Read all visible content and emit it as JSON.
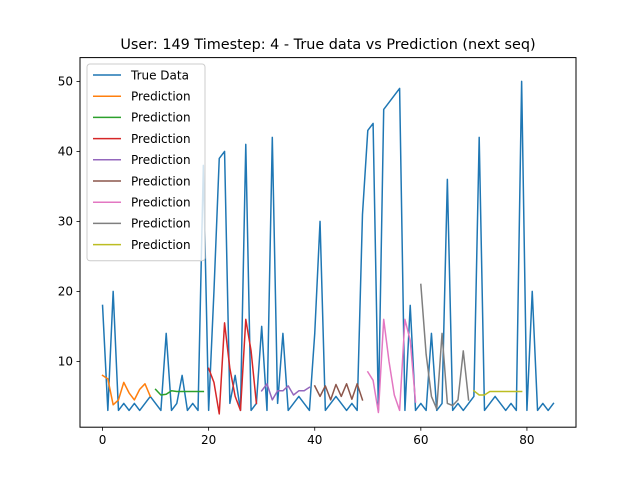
{
  "chart_data": {
    "type": "line",
    "title": "User: 149 Timestep: 4 - True data vs Prediction (next seq)",
    "xlabel": "",
    "ylabel": "",
    "xlim": [
      -4.25,
      89.25
    ],
    "ylim": [
      0.6,
      53.4
    ],
    "xticks": [
      0,
      20,
      40,
      60,
      80
    ],
    "yticks": [
      10,
      20,
      30,
      40,
      50
    ],
    "grid": false,
    "legend_position": "top-left",
    "colors": {
      "true_data": "#1f77b4",
      "prediction_1": "#ff7f0e",
      "prediction_2": "#2ca02c",
      "prediction_3": "#d62728",
      "prediction_4": "#9467bd",
      "prediction_5": "#8c564b",
      "prediction_6": "#e377c2",
      "prediction_7": "#7f7f7f",
      "prediction_8": "#bcbd22"
    },
    "series": [
      {
        "name": "True Data",
        "color": "#1f77b4",
        "x_start": 0,
        "values": [
          18,
          3,
          20,
          3,
          4,
          3,
          4,
          3,
          4,
          5,
          4,
          3,
          14,
          3,
          4,
          8,
          3,
          4,
          3,
          38,
          3,
          20,
          39,
          40,
          4,
          8,
          3,
          41,
          3,
          4,
          15,
          3,
          42,
          4,
          14,
          3,
          4,
          5,
          4,
          3,
          14,
          30,
          3,
          4,
          5,
          4,
          3,
          4,
          3,
          31,
          43,
          44,
          3,
          46,
          47,
          48,
          49,
          3,
          18,
          3,
          4,
          3,
          14,
          3,
          4,
          36,
          3,
          4,
          3,
          4,
          5,
          42,
          3,
          4,
          5,
          4,
          3,
          4,
          3,
          50,
          3,
          20,
          3,
          4,
          3,
          4
        ]
      },
      {
        "name": "Prediction",
        "color": "#ff7f0e",
        "x_start": 0,
        "values": [
          8,
          7.5,
          3.8,
          4.5,
          7,
          5.5,
          4.5,
          6,
          6.8,
          5
        ]
      },
      {
        "name": "Prediction",
        "color": "#2ca02c",
        "x_start": 10,
        "values": [
          6,
          5.2,
          5.3,
          5.8,
          5.7,
          5.7,
          5.7,
          5.7,
          5.7,
          5.7
        ]
      },
      {
        "name": "Prediction",
        "color": "#d62728",
        "x_start": 20,
        "values": [
          9,
          7,
          2.5,
          15.5,
          9,
          5,
          3,
          16,
          11.5,
          4
        ]
      },
      {
        "name": "Prediction",
        "color": "#9467bd",
        "x_start": 30,
        "values": [
          5.8,
          6.8,
          4.5,
          5.8,
          5.8,
          6.5,
          5.2,
          5.8,
          5.8,
          6.3
        ]
      },
      {
        "name": "Prediction",
        "color": "#8c564b",
        "x_start": 40,
        "values": [
          6.5,
          5,
          6.5,
          4.5,
          6.7,
          5,
          6.8,
          4.6,
          6.8,
          4.5
        ]
      },
      {
        "name": "Prediction",
        "color": "#e377c2",
        "x_start": 50,
        "values": [
          8.5,
          7.3,
          2.7,
          16,
          10,
          5.2,
          3,
          16,
          13,
          4.2
        ]
      },
      {
        "name": "Prediction",
        "color": "#7f7f7f",
        "x_start": 60,
        "values": [
          21,
          11,
          5,
          3.2,
          14,
          4,
          3.7,
          4.5,
          11.5,
          4.5
        ]
      },
      {
        "name": "Prediction",
        "color": "#bcbd22",
        "x_start": 70,
        "values": [
          5.8,
          5.2,
          5.2,
          5.7,
          5.7,
          5.7,
          5.7,
          5.7,
          5.7,
          5.7
        ]
      }
    ]
  }
}
